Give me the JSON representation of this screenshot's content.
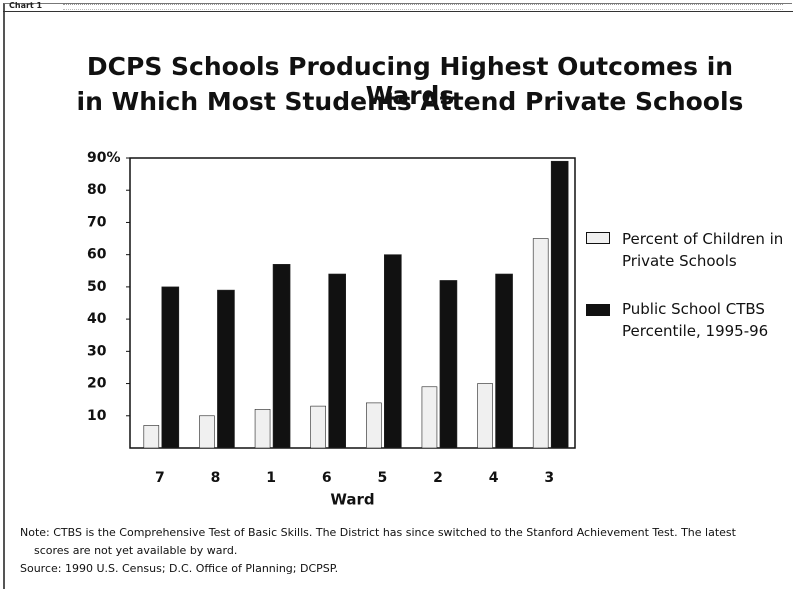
{
  "header": "Chart 1",
  "chart_data": {
    "type": "bar",
    "title": [
      "DCPS Schools Producing Highest Outcomes in Wards",
      "in Which Most Students Attend Private Schools"
    ],
    "x_label": "Ward",
    "categories": [
      "7",
      "8",
      "1",
      "6",
      "5",
      "2",
      "4",
      "3"
    ],
    "series": [
      {
        "name": "Percent of Children in Private Schools",
        "color": "#f0f0f0",
        "values": [
          7,
          10,
          12,
          13,
          14,
          19,
          20,
          65
        ]
      },
      {
        "name": "Public School CTBS Percentile, 1995-96",
        "color": "#111111",
        "values": [
          50,
          49,
          57,
          54,
          60,
          52,
          54,
          89
        ]
      }
    ],
    "ylim": [
      0,
      90
    ],
    "yticks": [
      {
        "value": 90,
        "label": "90%"
      },
      80,
      70,
      60,
      50,
      40,
      30,
      20,
      10
    ],
    "legend": "right"
  },
  "note": "Note: CTBS is the Comprehensive Test of Basic Skills.  The District has since switched to the Stanford Achievement Test.  The latest scores are not yet available by ward.",
  "source": "Source: 1990 U.S. Census; D.C. Office of Planning; DCPSP."
}
